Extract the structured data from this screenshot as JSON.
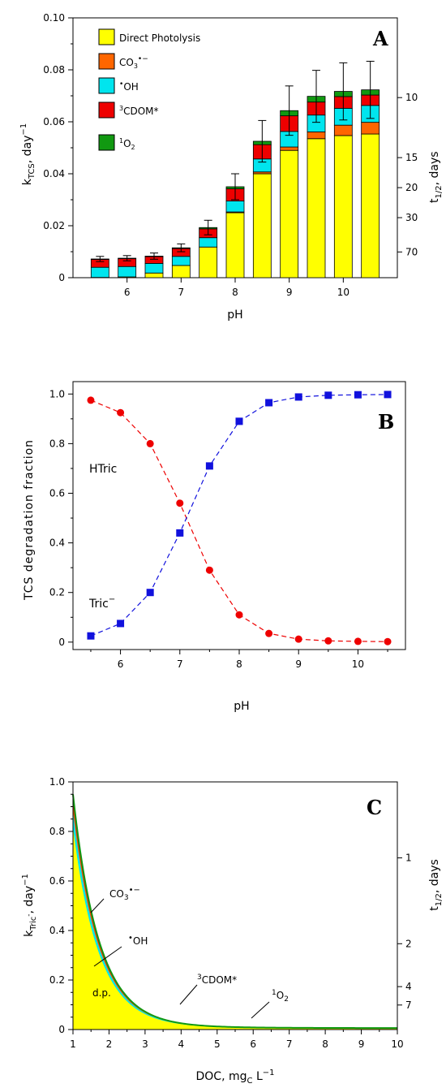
{
  "chart_data": [
    {
      "id": "A",
      "type": "bar",
      "panel_label": "A",
      "xlabel": "pH",
      "ylabel": "k_TCS, day^-1",
      "y2label": "t_1/2, days",
      "xlim": [
        5.0,
        11.0
      ],
      "ylim": [
        0,
        0.1
      ],
      "x_ticks": [
        "6",
        "7",
        "8",
        "9",
        "10"
      ],
      "y_ticks": [
        "0",
        "0.02",
        "0.04",
        "0.06",
        "0.08",
        "0.10"
      ],
      "y2_ticks": [
        "10",
        "15",
        "20",
        "30",
        "70"
      ],
      "categories": [
        "5.5",
        "6",
        "6.5",
        "7",
        "7.5",
        "8",
        "8.5",
        "9",
        "9.5",
        "10",
        "10.5"
      ],
      "stack_order": [
        "Direct Photolysis",
        "CO3•−",
        "•OH",
        "3CDOM*",
        "1O2"
      ],
      "series": [
        {
          "name": "Direct Photolysis",
          "color": "#ffff00",
          "values": [
            0.0001,
            0.0003,
            0.0018,
            0.0047,
            0.0118,
            0.025,
            0.04,
            0.049,
            0.0535,
            0.0547,
            0.0553
          ]
        },
        {
          "name": "CO3•−",
          "color": "#ff6600",
          "values": [
            0,
            0,
            0,
            0,
            0,
            0.0003,
            0.0007,
            0.0013,
            0.0026,
            0.004,
            0.0045
          ]
        },
        {
          "name": "•OH",
          "color": "#00e5ee",
          "values": [
            0.0039,
            0.004,
            0.0037,
            0.0035,
            0.0036,
            0.0042,
            0.005,
            0.006,
            0.0065,
            0.0065,
            0.0065
          ]
        },
        {
          "name": "3CDOM*",
          "color": "#ee0000",
          "values": [
            0.003,
            0.003,
            0.0026,
            0.003,
            0.0034,
            0.0047,
            0.0055,
            0.006,
            0.005,
            0.0045,
            0.004
          ]
        },
        {
          "name": "1O2",
          "color": "#119911",
          "values": [
            0.0002,
            0.0002,
            0.0002,
            0.0003,
            0.0005,
            0.0008,
            0.0013,
            0.002,
            0.0022,
            0.002,
            0.002
          ]
        }
      ],
      "error_bars": [
        0.001,
        0.001,
        0.0012,
        0.0015,
        0.0028,
        0.005,
        0.008,
        0.0095,
        0.01,
        0.011,
        0.011
      ],
      "legend": {
        "position": "top-left",
        "entries": [
          "Direct Photolysis",
          "CO3•−",
          "•OH",
          "3CDOM*",
          "1O2"
        ]
      }
    },
    {
      "id": "B",
      "type": "line",
      "panel_label": "B",
      "xlabel": "pH",
      "ylabel": "TCS degradation fraction",
      "xlim": [
        5.2,
        10.8
      ],
      "ylim": [
        -0.03,
        1.05
      ],
      "x_ticks": [
        "6",
        "7",
        "8",
        "9",
        "10"
      ],
      "y_ticks": [
        "0",
        "0.2",
        "0.4",
        "0.6",
        "0.8",
        "1.0"
      ],
      "x": [
        5.5,
        6,
        6.5,
        7,
        7.5,
        8,
        8.5,
        9,
        9.5,
        10,
        10.5
      ],
      "series": [
        {
          "name": "HTric",
          "color": "#ee0000",
          "marker": "circle",
          "values": [
            0.975,
            0.925,
            0.8,
            0.56,
            0.29,
            0.11,
            0.035,
            0.012,
            0.005,
            0.003,
            0.002
          ]
        },
        {
          "name": "Tric−",
          "color": "#1111dd",
          "marker": "square",
          "values": [
            0.025,
            0.075,
            0.2,
            0.44,
            0.71,
            0.89,
            0.965,
            0.988,
            0.995,
            0.997,
            0.998
          ]
        }
      ]
    },
    {
      "id": "C",
      "type": "area",
      "panel_label": "C",
      "xlabel": "DOC, mg_C L^-1",
      "ylabel": "k_Tric-, day^-1",
      "y2label": "t_1/2, days",
      "xlim": [
        1,
        10
      ],
      "ylim": [
        0,
        1.0
      ],
      "x_ticks": [
        "1",
        "2",
        "3",
        "4",
        "5",
        "6",
        "7",
        "8",
        "9",
        "10"
      ],
      "y_ticks": [
        "0",
        "0.2",
        "0.4",
        "0.6",
        "0.8",
        "1.0"
      ],
      "y2_ticks": [
        "1",
        "2",
        "4",
        "7"
      ],
      "curve": {
        "dp_a": 0.82,
        "dp_b": 1.35,
        "dp_c": 0.005,
        "stack_top_at_x1": 0.95
      },
      "annotations": [
        "CO3•−",
        "•OH",
        "3CDOM*",
        "1O2",
        "d.p."
      ],
      "series_colors": {
        "d.p.": "#ffff00",
        "•OH": "#00e5ee",
        "CO3•−": "#ff6600",
        "3CDOM*": "#ee0000",
        "1O2": "#119911"
      }
    }
  ],
  "labels": {
    "pH": "pH",
    "HTric": "HTric",
    "Tric": "Tric",
    "dp": "d.p.",
    "days": "days",
    "day": "day",
    "DOC": "DOC, mg",
    "DOC_sub": "C",
    "DOC_unit": "L",
    "minus1": "−1"
  }
}
